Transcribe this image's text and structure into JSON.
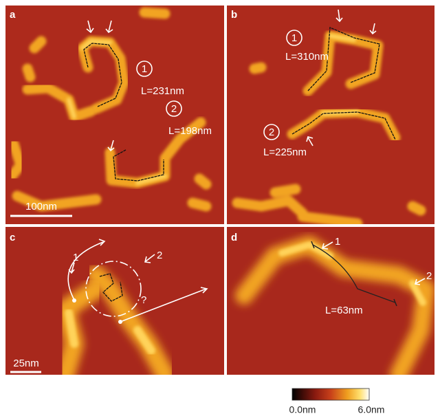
{
  "panels": [
    {
      "label": "a",
      "annotations": [
        "1",
        "L=231nm",
        "2",
        "L=198nm"
      ],
      "scale_bar": "100nm"
    },
    {
      "label": "b",
      "annotations": [
        "1",
        "L=310nm",
        "2",
        "L=225nm"
      ]
    },
    {
      "label": "c",
      "annotations": [
        "1",
        "2",
        "?"
      ],
      "scale_bar": "25nm"
    },
    {
      "label": "d",
      "annotations": [
        "1",
        "2",
        "L=63nm"
      ]
    }
  ],
  "colorbar": {
    "min_label": "0.0nm",
    "max_label": "6.0nm"
  }
}
